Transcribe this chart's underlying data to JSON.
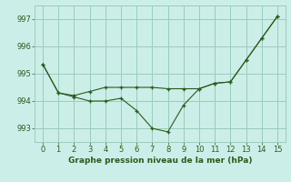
{
  "line1_x": [
    0,
    1,
    2,
    3,
    4,
    5,
    6,
    7,
    8,
    9,
    10,
    11,
    12,
    13,
    14,
    15
  ],
  "line1_y": [
    995.35,
    994.3,
    994.2,
    994.35,
    994.5,
    994.5,
    994.5,
    994.5,
    994.45,
    994.45,
    994.45,
    994.65,
    994.7,
    995.5,
    996.3,
    997.1
  ],
  "line2_x": [
    0,
    1,
    2,
    3,
    4,
    5,
    6,
    7,
    8,
    9,
    10,
    11,
    12,
    13,
    14,
    15
  ],
  "line2_y": [
    995.35,
    994.3,
    994.15,
    994.0,
    994.0,
    994.1,
    993.65,
    993.0,
    992.87,
    993.85,
    994.45,
    994.65,
    994.7,
    995.5,
    996.3,
    997.1
  ],
  "line_color": "#2d5a1b",
  "bg_color": "#cceee8",
  "grid_color": "#99ccbb",
  "xlabel": "Graphe pression niveau de la mer (hPa)",
  "ylim": [
    992.5,
    997.5
  ],
  "xlim": [
    -0.5,
    15.5
  ],
  "yticks": [
    993,
    994,
    995,
    996,
    997
  ],
  "xticks": [
    0,
    1,
    2,
    3,
    4,
    5,
    6,
    7,
    8,
    9,
    10,
    11,
    12,
    13,
    14,
    15
  ]
}
